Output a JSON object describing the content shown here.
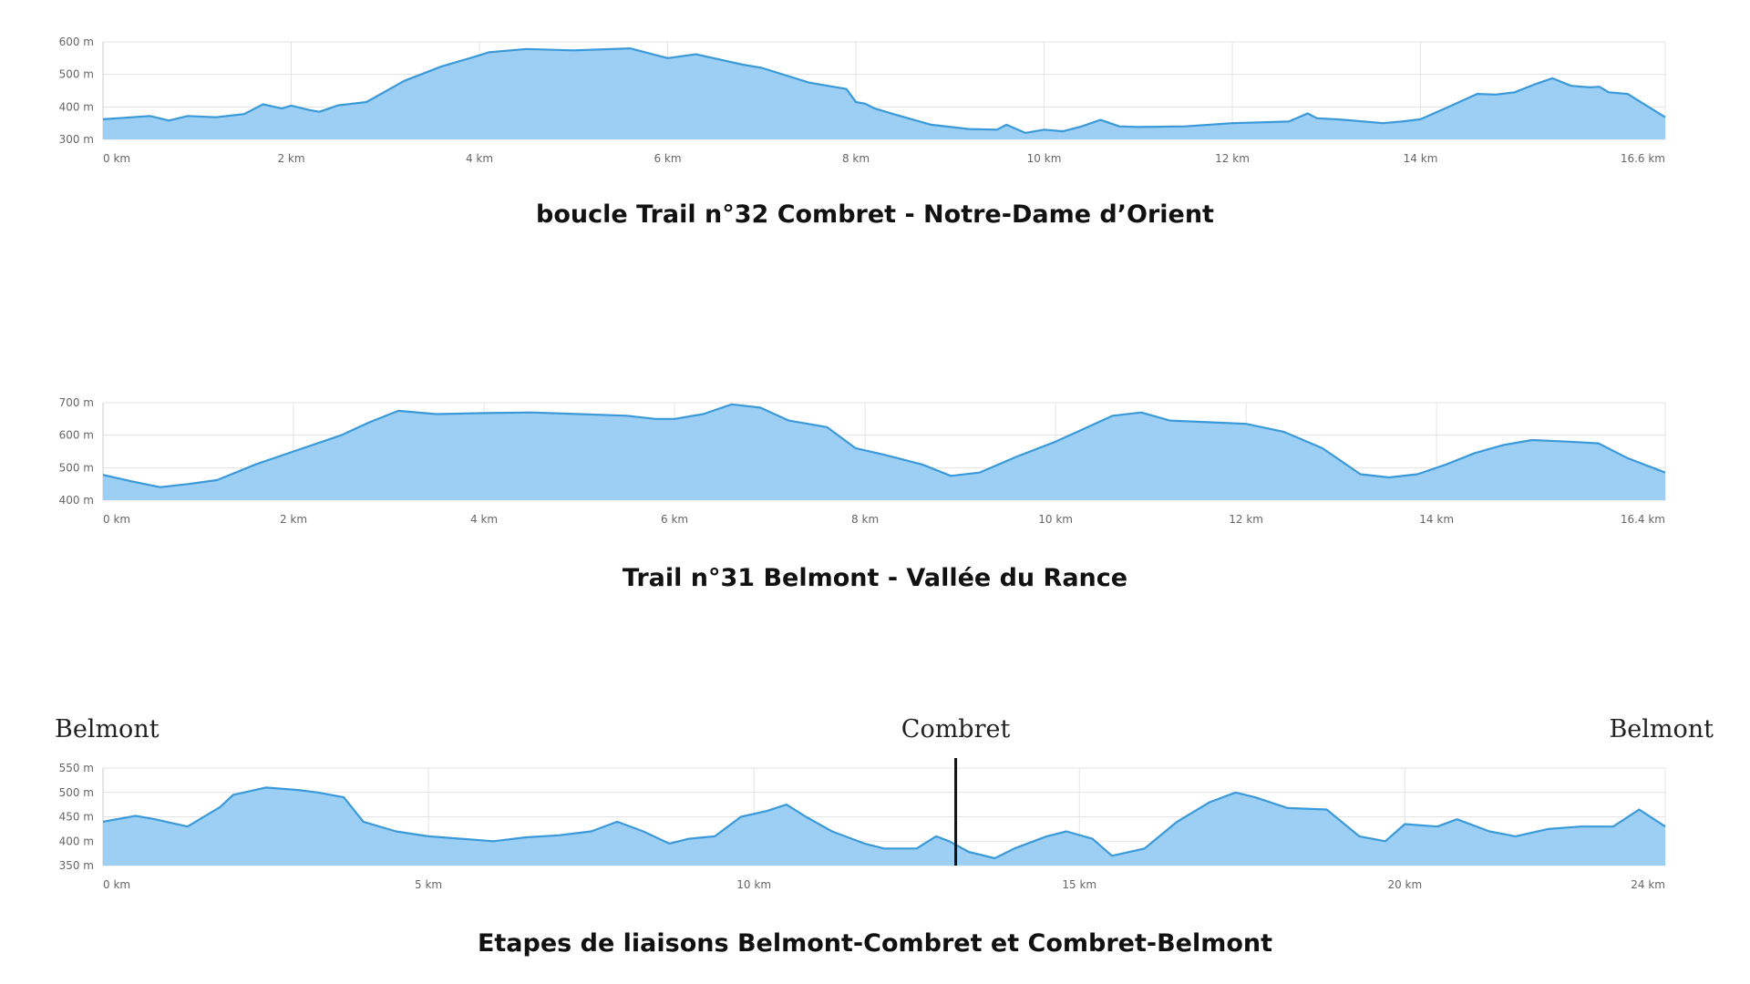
{
  "colors": {
    "fill": "#9dcff5",
    "line": "#3a9ad9",
    "marker": "#111111"
  },
  "chart_data": [
    {
      "type": "area",
      "title": "boucle Trail n°32 Combret - Notre-Dame d’Orient",
      "x_ticks": [
        0,
        2,
        4,
        6,
        8,
        10,
        12,
        14,
        16.6
      ],
      "x_tick_labels": [
        "0 km",
        "2 km",
        "4 km",
        "6 km",
        "8 km",
        "10 km",
        "12 km",
        "14 km",
        "16.6 km"
      ],
      "y_ticks": [
        300,
        400,
        500,
        600
      ],
      "y_tick_labels": [
        "300 m",
        "400 m",
        "500 m",
        "600 m"
      ],
      "xlim": [
        0,
        16.6
      ],
      "ylim": [
        300,
        600
      ],
      "grid": true,
      "series": [
        {
          "x": [
            0,
            0.5,
            0.7,
            0.9,
            1.2,
            1.5,
            1.7,
            1.9,
            2.0,
            2.2,
            2.3,
            2.5,
            2.8,
            3.2,
            3.6,
            3.9,
            4.1,
            4.5,
            5.0,
            5.6,
            6.0,
            6.3,
            6.8,
            7.0,
            7.5,
            7.9,
            8.0,
            8.1,
            8.2,
            8.4,
            8.8,
            9.2,
            9.5,
            9.6,
            9.8,
            10.0,
            10.2,
            10.4,
            10.6,
            10.8,
            11.0,
            11.5,
            12.0,
            12.6,
            12.8,
            12.9,
            13.1,
            13.2,
            13.6,
            13.8,
            14.0,
            14.3,
            14.6,
            14.8,
            15.0,
            15.2,
            15.4,
            15.6,
            15.8,
            15.9,
            16.0,
            16.2,
            16.6
          ],
          "y": [
            362,
            372,
            358,
            372,
            368,
            378,
            408,
            395,
            404,
            390,
            385,
            405,
            415,
            480,
            525,
            550,
            568,
            578,
            574,
            580,
            550,
            562,
            530,
            520,
            475,
            455,
            415,
            410,
            395,
            378,
            345,
            332,
            330,
            345,
            320,
            330,
            325,
            340,
            360,
            340,
            338,
            340,
            350,
            355,
            380,
            365,
            362,
            360,
            350,
            355,
            362,
            400,
            440,
            438,
            445,
            468,
            488,
            465,
            460,
            462,
            445,
            440,
            368
          ]
        }
      ]
    },
    {
      "type": "area",
      "title": "Trail n°31 Belmont - Vallée du Rance",
      "x_ticks": [
        0,
        2,
        4,
        6,
        8,
        10,
        12,
        14,
        16.4
      ],
      "x_tick_labels": [
        "0 km",
        "2 km",
        "4 km",
        "6 km",
        "8 km",
        "10 km",
        "12 km",
        "14 km",
        "16.4 km"
      ],
      "y_ticks": [
        400,
        500,
        600,
        700
      ],
      "y_tick_labels": [
        "400 m",
        "500 m",
        "600 m",
        "700 m"
      ],
      "xlim": [
        0,
        16.4
      ],
      "ylim": [
        400,
        700
      ],
      "grid": true,
      "series": [
        {
          "x": [
            0,
            0.3,
            0.6,
            0.9,
            1.2,
            1.6,
            2.0,
            2.5,
            2.8,
            3.1,
            3.5,
            4.0,
            4.5,
            5.0,
            5.5,
            5.8,
            6.0,
            6.3,
            6.6,
            6.9,
            7.2,
            7.6,
            7.9,
            8.2,
            8.6,
            8.9,
            9.2,
            9.6,
            10.0,
            10.3,
            10.6,
            10.9,
            11.2,
            11.6,
            12.0,
            12.4,
            12.8,
            13.2,
            13.5,
            13.8,
            14.1,
            14.4,
            14.7,
            15.0,
            15.4,
            15.7,
            16.0,
            16.4
          ],
          "y": [
            478,
            458,
            440,
            450,
            462,
            510,
            550,
            600,
            640,
            675,
            665,
            668,
            670,
            665,
            660,
            650,
            650,
            665,
            695,
            685,
            645,
            625,
            560,
            540,
            510,
            475,
            485,
            535,
            580,
            620,
            660,
            670,
            645,
            640,
            635,
            610,
            560,
            480,
            470,
            480,
            510,
            545,
            570,
            585,
            580,
            575,
            530,
            485
          ]
        }
      ]
    },
    {
      "type": "area",
      "title": "Etapes de liaisons Belmont-Combret et Combret-Belmont",
      "annotations": {
        "start": "Belmont",
        "middle": "Combret",
        "end": "Belmont"
      },
      "marker_x": 13.1,
      "x_ticks": [
        0,
        5,
        10,
        15,
        20,
        24
      ],
      "x_tick_labels": [
        "0 km",
        "5 km",
        "10 km",
        "15 km",
        "20 km",
        "24 km"
      ],
      "y_ticks": [
        350,
        400,
        450,
        500,
        550
      ],
      "y_tick_labels": [
        "350 m",
        "400 m",
        "450 m",
        "500 m",
        "550 m"
      ],
      "xlim": [
        0,
        24
      ],
      "ylim": [
        350,
        550
      ],
      "grid": true,
      "series": [
        {
          "x": [
            0,
            0.5,
            0.8,
            1.3,
            1.8,
            2.0,
            2.5,
            3.0,
            3.3,
            3.7,
            4.0,
            4.5,
            5.0,
            5.5,
            6.0,
            6.5,
            7.0,
            7.5,
            7.9,
            8.3,
            8.7,
            9.0,
            9.4,
            9.8,
            10.2,
            10.5,
            10.8,
            11.2,
            11.7,
            12.0,
            12.5,
            12.8,
            13.0,
            13.3,
            13.7,
            14.0,
            14.5,
            14.8,
            15.2,
            15.5,
            16.0,
            16.5,
            17.0,
            17.4,
            17.7,
            18.2,
            18.8,
            19.3,
            19.7,
            20.0,
            20.5,
            20.8,
            21.3,
            21.7,
            22.2,
            22.7,
            23.2,
            23.6,
            24.0
          ],
          "y": [
            440,
            452,
            445,
            430,
            470,
            495,
            510,
            505,
            500,
            490,
            440,
            420,
            410,
            405,
            400,
            408,
            412,
            420,
            440,
            420,
            395,
            405,
            410,
            450,
            462,
            475,
            450,
            420,
            395,
            385,
            385,
            410,
            400,
            378,
            365,
            385,
            410,
            420,
            405,
            370,
            385,
            440,
            480,
            500,
            490,
            468,
            465,
            410,
            400,
            435,
            430,
            445,
            420,
            410,
            425,
            430,
            430,
            465,
            430
          ]
        }
      ]
    }
  ]
}
